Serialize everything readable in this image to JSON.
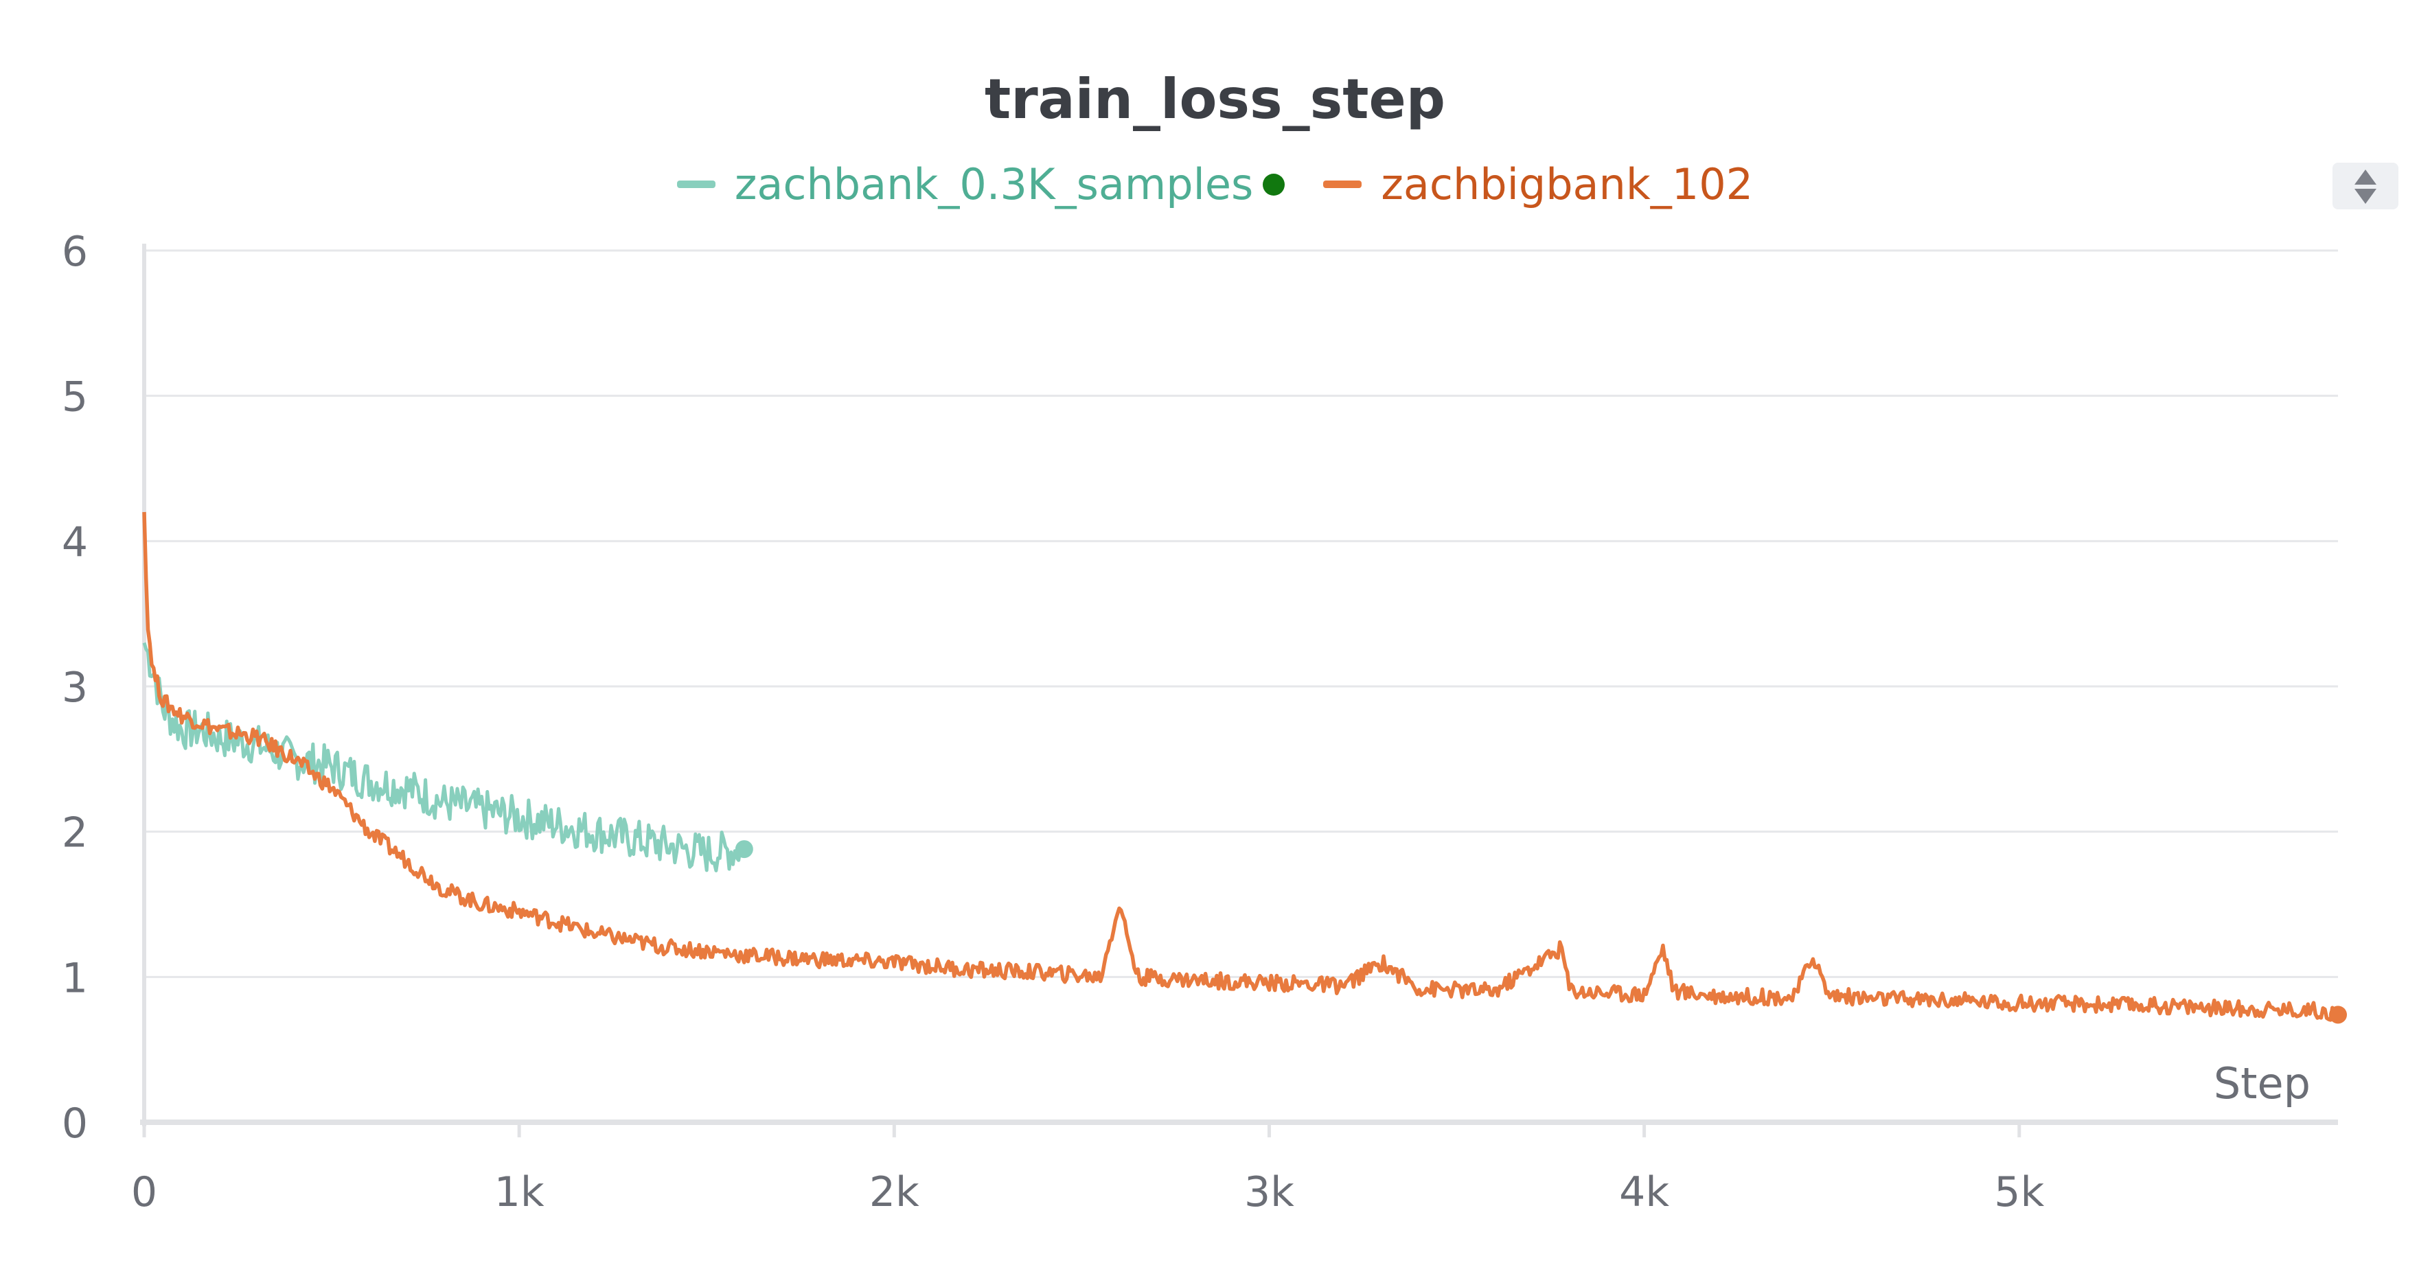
{
  "chart_data": {
    "type": "line",
    "title": "train_loss_step",
    "xlabel": "Step",
    "ylabel": "",
    "xlim": [
      0,
      5850
    ],
    "ylim": [
      0,
      6
    ],
    "x_ticks": [
      0,
      1000,
      2000,
      3000,
      4000,
      5000
    ],
    "x_tick_labels": [
      "0",
      "1k",
      "2k",
      "3k",
      "4k",
      "5k"
    ],
    "y_ticks": [
      0,
      1,
      2,
      3,
      4,
      5,
      6
    ],
    "y_tick_labels": [
      "0",
      "1",
      "2",
      "3",
      "4",
      "5",
      "6"
    ],
    "grid": true,
    "legend_position": "top-center",
    "series": [
      {
        "name": "zachbank_0.3K_samples",
        "color": "#88cfbd",
        "marker_color": "#11780f",
        "x": [
          0,
          25,
          50,
          100,
          150,
          200,
          300,
          400,
          500,
          600,
          700,
          800,
          900,
          1000,
          1100,
          1200,
          1300,
          1400,
          1500,
          1600
        ],
        "y": [
          3.3,
          3.1,
          2.85,
          2.7,
          2.7,
          2.65,
          2.6,
          2.5,
          2.45,
          2.35,
          2.3,
          2.2,
          2.15,
          2.1,
          2.05,
          2.0,
          1.95,
          1.9,
          1.85,
          1.88
        ]
      },
      {
        "name": "zachbigbank_102",
        "color": "#e87a3e",
        "marker_color": "#e87a3e",
        "x": [
          0,
          10,
          25,
          50,
          100,
          200,
          300,
          400,
          500,
          600,
          700,
          800,
          900,
          1000,
          1100,
          1200,
          1300,
          1400,
          1500,
          1600,
          1800,
          2000,
          2200,
          2400,
          2550,
          2600,
          2650,
          2800,
          3000,
          3200,
          3300,
          3400,
          3600,
          3780,
          3800,
          3830,
          4000,
          4050,
          4080,
          4200,
          4400,
          4450,
          4490,
          4600,
          4800,
          5000,
          5200,
          5400,
          5600,
          5800,
          5850
        ],
        "y": [
          4.2,
          3.4,
          3.1,
          2.9,
          2.8,
          2.7,
          2.65,
          2.5,
          2.3,
          2.0,
          1.8,
          1.6,
          1.5,
          1.45,
          1.38,
          1.3,
          1.25,
          1.2,
          1.18,
          1.15,
          1.12,
          1.1,
          1.05,
          1.03,
          1.0,
          1.5,
          1.0,
          0.98,
          0.96,
          0.94,
          1.1,
          0.92,
          0.9,
          1.2,
          0.92,
          0.9,
          0.88,
          1.2,
          0.9,
          0.87,
          0.86,
          1.15,
          0.88,
          0.85,
          0.84,
          0.82,
          0.81,
          0.8,
          0.78,
          0.77,
          0.74
        ]
      }
    ]
  }
}
